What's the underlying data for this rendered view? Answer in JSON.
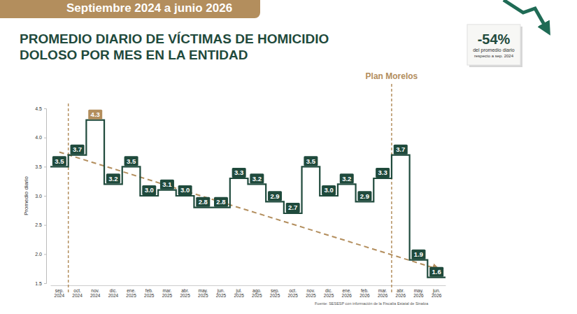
{
  "chart_data": {
    "type": "step",
    "subtitle": "Septiembre 2024 a junio 2026",
    "title": "PROMEDIO DIARIO DE VÍCTIMAS DE HOMICIDIO DOLOSO POR MES EN LA ENTIDAD",
    "title_lines": [
      "PROMEDIO DIARIO DE VÍCTIMAS DE HOMICIDIO",
      "DOLOSO POR MES EN LA ENTIDAD"
    ],
    "y_label": "Promedio diario",
    "categories": [
      "sep. 2024",
      "oct. 2024",
      "nov. 2024",
      "dic. 2024",
      "ene. 2025",
      "feb. 2025",
      "mar. 2025",
      "abr. 2025",
      "may. 2025",
      "jun. 2025",
      "jul. 2025",
      "ago. 2025",
      "sep. 2025",
      "oct. 2025",
      "nov. 2025",
      "dic. 2025",
      "ene. 2026",
      "feb. 2026",
      "mar. 2026",
      "abr. 2026",
      "may. 2026",
      "jun. 2026"
    ],
    "values": [
      3.5,
      3.7,
      4.3,
      3.2,
      3.5,
      3.0,
      3.1,
      3.0,
      2.8,
      2.8,
      3.3,
      3.2,
      2.9,
      2.7,
      3.5,
      3.0,
      3.2,
      2.9,
      3.3,
      3.7,
      1.9,
      1.6
    ],
    "color": "#1f4a3c",
    "colors": [
      "#1f4a3c",
      "#1f4a3c",
      "#b38e5d",
      "#1f4a3c",
      "#1f4a3c",
      "#1f4a3c",
      "#1f4a3c",
      "#1f4a3c",
      "#1f4a3c",
      "#1f4a3c",
      "#1f4a3c",
      "#1f4a3c",
      "#1f4a3c",
      "#1f4a3c",
      "#1f4a3c",
      "#1f4a3c",
      "#1f4a3c",
      "#1f4a3c",
      "#1f4a3c",
      "#1f4a3c",
      "#1f4a3c",
      "#1f4a3c"
    ],
    "ylim": [
      1.5,
      4.5
    ],
    "yticks": [
      1.5,
      {
        "value": 2,
        "label": "2.0"
      },
      2.5,
      {
        "value": 3,
        "label": "3.0"
      },
      3.5,
      {
        "value": 4,
        "label": "4.0"
      },
      4.5
    ],
    "grid": false,
    "data_labels": true,
    "vlines": [
      {
        "between": [
          "sep. 2024",
          "oct. 2024"
        ]
      },
      {
        "between": [
          "mar. 2026",
          "abr. 2026"
        ],
        "label": "Plan Morelos"
      }
    ],
    "trend": {
      "from": {
        "x": "sep. 2024",
        "y": 3.75
      },
      "to": {
        "x": "jun. 2026",
        "y": 1.75
      },
      "color": "#b38e5d",
      "line_style": "dashed"
    },
    "callout": {
      "headline": "-54%",
      "lines": [
        "del promedio diario",
        "respecto a sep. 2024"
      ]
    },
    "source": "Fuente: SESESP con información de la Fiscalía Estatal de Sinaloa"
  }
}
